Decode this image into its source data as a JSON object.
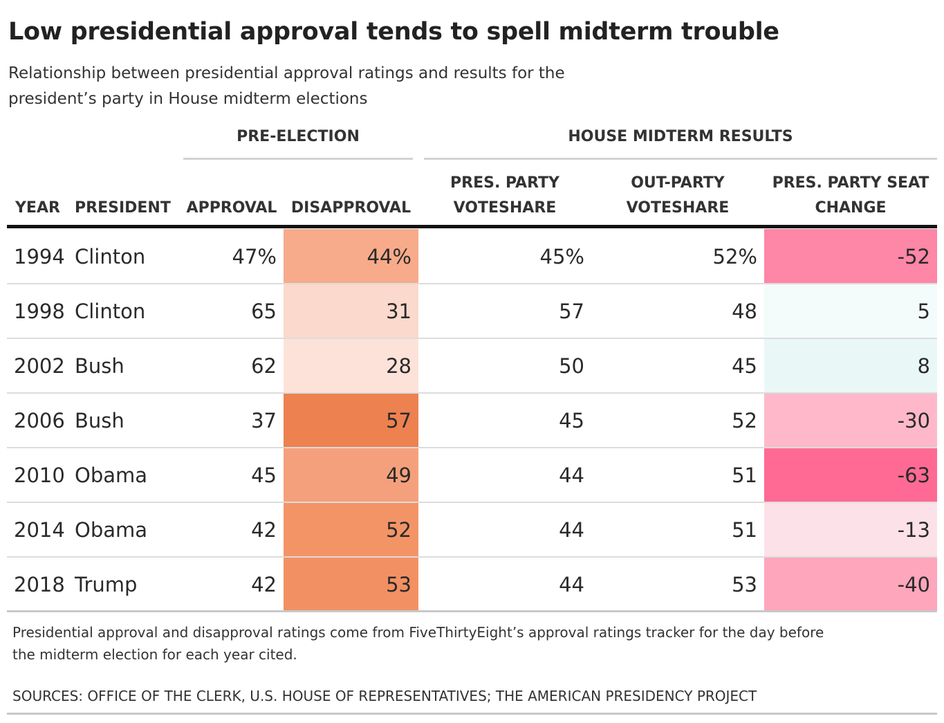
{
  "title": "Low presidential approval tends to spell midterm trouble",
  "subtitle": "Relationship between presidential approval ratings and results for the president’s party in House midterm elections",
  "groups": {
    "pre_election": "PRE-ELECTION",
    "house_results": "HOUSE MIDTERM RESULTS"
  },
  "columns": {
    "year": "YEAR",
    "president": "PRESIDENT",
    "approval": "APPROVAL",
    "disapproval": "DISAPPROVAL",
    "pres_voteshare": "PRES. PARTY\nVOTESHARE",
    "out_voteshare": "OUT-PARTY\nVOTESHARE",
    "seat_change": "PRES. PARTY SEAT\nCHANGE"
  },
  "rows": [
    {
      "year": "1994",
      "president": "Clinton",
      "approval": "47%",
      "disapproval": "44%",
      "pres_voteshare": "45%",
      "out_voteshare": "52%",
      "seat_change": "-52"
    },
    {
      "year": "1998",
      "president": "Clinton",
      "approval": "65",
      "disapproval": "31",
      "pres_voteshare": "57",
      "out_voteshare": "48",
      "seat_change": "5"
    },
    {
      "year": "2002",
      "president": "Bush",
      "approval": "62",
      "disapproval": "28",
      "pres_voteshare": "50",
      "out_voteshare": "45",
      "seat_change": "8"
    },
    {
      "year": "2006",
      "president": "Bush",
      "approval": "37",
      "disapproval": "57",
      "pres_voteshare": "45",
      "out_voteshare": "52",
      "seat_change": "-30"
    },
    {
      "year": "2010",
      "president": "Obama",
      "approval": "45",
      "disapproval": "49",
      "pres_voteshare": "44",
      "out_voteshare": "51",
      "seat_change": "-63"
    },
    {
      "year": "2014",
      "president": "Obama",
      "approval": "42",
      "disapproval": "52",
      "pres_voteshare": "44",
      "out_voteshare": "51",
      "seat_change": "-13"
    },
    {
      "year": "2018",
      "president": "Trump",
      "approval": "42",
      "disapproval": "53",
      "pres_voteshare": "44",
      "out_voteshare": "53",
      "seat_change": "-40"
    }
  ],
  "colors": {
    "disapproval": [
      "#f7ab8a",
      "#fbd9cc",
      "#fde2d9",
      "#ed8150",
      "#f5a07c",
      "#f39467",
      "#f39063"
    ],
    "seat_change": [
      "#fe86a7",
      "#f3fbfb",
      "#e9f7f7",
      "#ffb8ca",
      "#fe6a93",
      "#fde1e8",
      "#fea6bc"
    ]
  },
  "footnote": "Presidential approval and disapproval ratings come from FiveThirtyEight’s approval ratings tracker for the day before the midterm election for each year cited.",
  "sources": "SOURCES: OFFICE OF THE CLERK, U.S. HOUSE OF REPRESENTATIVES; THE AMERICAN PRESIDENCY PROJECT",
  "chart_data": {
    "type": "table",
    "title": "Low presidential approval tends to spell midterm trouble",
    "subtitle": "Relationship between presidential approval ratings and results for the president’s party in House midterm elections",
    "columns": [
      "YEAR",
      "PRESIDENT",
      "APPROVAL",
      "DISAPPROVAL",
      "PRES. PARTY VOTESHARE",
      "OUT-PARTY VOTESHARE",
      "PRES. PARTY SEAT CHANGE"
    ],
    "values": [
      [
        1994,
        "Clinton",
        47,
        44,
        45,
        52,
        -52
      ],
      [
        1998,
        "Clinton",
        65,
        31,
        57,
        48,
        5
      ],
      [
        2002,
        "Bush",
        62,
        28,
        50,
        45,
        8
      ],
      [
        2006,
        "Bush",
        37,
        57,
        45,
        52,
        -30
      ],
      [
        2010,
        "Obama",
        45,
        49,
        44,
        51,
        -63
      ],
      [
        2014,
        "Obama",
        42,
        52,
        44,
        51,
        -13
      ],
      [
        2018,
        "Trump",
        42,
        53,
        44,
        53,
        -40
      ]
    ]
  }
}
